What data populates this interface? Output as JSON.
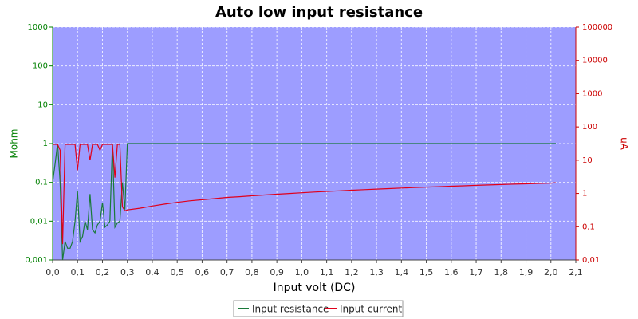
{
  "chart_data": {
    "type": "line",
    "title": "Auto low input resistance",
    "xlabel": "Input volt (DC)",
    "ylabel": "Mohm",
    "y2label": "uA",
    "x": [
      0,
      0.01,
      0.02,
      0.03,
      0.04,
      0.05,
      0.06,
      0.07,
      0.08,
      0.09,
      0.1,
      0.11,
      0.12,
      0.13,
      0.14,
      0.15,
      0.16,
      0.17,
      0.18,
      0.19,
      0.2,
      0.21,
      0.22,
      0.23,
      0.24,
      0.25,
      0.26,
      0.27,
      0.28,
      0.29,
      0.3,
      0.35,
      0.4,
      0.45,
      0.5,
      0.55,
      0.6,
      0.65,
      0.7,
      0.75,
      0.8,
      0.85,
      0.9,
      0.95,
      1.0,
      1.05,
      1.1,
      1.15,
      1.2,
      1.25,
      1.3,
      1.35,
      1.4,
      1.45,
      1.5,
      1.55,
      1.6,
      1.65,
      1.7,
      1.75,
      1.8,
      1.85,
      1.9,
      1.95,
      2.0,
      2.02
    ],
    "series": [
      {
        "name": "Input resistance",
        "color": "#1a7a3a",
        "axis": "y",
        "values": [
          0.1,
          0.3,
          1,
          0.1,
          0.001,
          0.003,
          0.002,
          0.002,
          0.003,
          0.01,
          0.06,
          0.003,
          0.004,
          0.01,
          0.006,
          0.05,
          0.006,
          0.005,
          0.008,
          0.01,
          0.03,
          0.007,
          0.008,
          0.01,
          1,
          0.007,
          0.009,
          0.01,
          0.1,
          0.02,
          1,
          1,
          1,
          1,
          1,
          1,
          1,
          1,
          1,
          1,
          1,
          1,
          1,
          1,
          1,
          1,
          1,
          1,
          1,
          1,
          1,
          1,
          1,
          1,
          1,
          1,
          1,
          1,
          1,
          1,
          1,
          1,
          1,
          1,
          1,
          1
        ]
      },
      {
        "name": "Input current",
        "color": "#e0001b",
        "axis": "y2",
        "values": [
          30,
          30,
          30,
          20,
          0.03,
          30,
          30,
          30,
          30,
          30,
          5,
          30,
          30,
          30,
          30,
          10,
          30,
          30,
          30,
          20,
          30,
          30,
          30,
          30,
          30,
          3,
          30,
          30,
          0.4,
          0.3,
          0.32,
          0.36,
          0.42,
          0.48,
          0.54,
          0.6,
          0.65,
          0.7,
          0.76,
          0.8,
          0.85,
          0.9,
          0.95,
          1.0,
          1.05,
          1.1,
          1.15,
          1.2,
          1.25,
          1.3,
          1.35,
          1.4,
          1.45,
          1.5,
          1.55,
          1.6,
          1.65,
          1.7,
          1.75,
          1.8,
          1.85,
          1.9,
          1.95,
          2.0,
          2.05,
          2.1
        ]
      }
    ],
    "xlim": [
      0,
      2.1
    ],
    "xticks": [
      {
        "value": 0,
        "label": "0,0"
      },
      {
        "value": 0.1,
        "label": "0,1"
      },
      {
        "value": 0.2,
        "label": "0,2"
      },
      {
        "value": 0.3,
        "label": "0,3"
      },
      {
        "value": 0.4,
        "label": "0,4"
      },
      {
        "value": 0.5,
        "label": "0,5"
      },
      {
        "value": 0.6,
        "label": "0,6"
      },
      {
        "value": 0.7,
        "label": "0,7"
      },
      {
        "value": 0.8,
        "label": "0,8"
      },
      {
        "value": 0.9,
        "label": "0,9"
      },
      {
        "value": 1,
        "label": "1,0"
      },
      {
        "value": 1.1,
        "label": "1,1"
      },
      {
        "value": 1.2,
        "label": "1,2"
      },
      {
        "value": 1.3,
        "label": "1,3"
      },
      {
        "value": 1.4,
        "label": "1,4"
      },
      {
        "value": 1.5,
        "label": "1,5"
      },
      {
        "value": 1.6,
        "label": "1,6"
      },
      {
        "value": 1.7,
        "label": "1,7"
      },
      {
        "value": 1.8,
        "label": "1,8"
      },
      {
        "value": 1.9,
        "label": "1,9"
      },
      {
        "value": 2,
        "label": "2,0"
      },
      {
        "value": 2.1,
        "label": "2,1"
      }
    ],
    "ylim": [
      0.001,
      1000
    ],
    "yscale": "log",
    "yticks": [
      {
        "value": 0.001,
        "label": "0,001"
      },
      {
        "value": 0.01,
        "label": "0,01"
      },
      {
        "value": 0.1,
        "label": "0,1"
      },
      1,
      10,
      100,
      1000
    ],
    "y2lim": [
      0.01,
      100000
    ],
    "y2scale": "log",
    "y2ticks": [
      {
        "value": 0.01,
        "label": "0,01"
      },
      {
        "value": 0.1,
        "label": "0,1"
      },
      1,
      10,
      100,
      1000,
      10000,
      100000
    ],
    "grid": true,
    "legend": "bottom"
  }
}
